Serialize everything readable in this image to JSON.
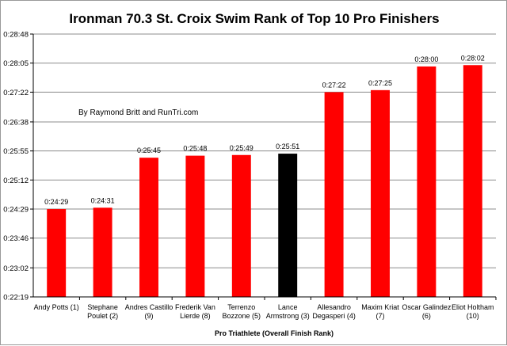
{
  "chart_data": {
    "type": "bar",
    "title": "Ironman 70.3 St. Croix Swim Rank of Top 10 Pro Finishers",
    "xlabel": "Pro Triathlete (Overall Finish Rank)",
    "ylabel": "",
    "annotation": "By Raymond Britt and RunTri.com",
    "grid": true,
    "legend": "none",
    "ylim": [
      "0:22:19",
      "0:28:48"
    ],
    "y_ticks": [
      "0:22:19",
      "0:23:02",
      "0:23:46",
      "0:24:29",
      "0:25:12",
      "0:25:55",
      "0:26:38",
      "0:27:22",
      "0:28:05",
      "0:28:48"
    ],
    "categories": [
      [
        "Andy Potts (1)"
      ],
      [
        "Stephane",
        "Poulet (2)"
      ],
      [
        "Andres Castillo",
        "(9)"
      ],
      [
        "Frederik Van",
        "Lierde (8)"
      ],
      [
        "Terrenzo",
        "Bozzone (5)"
      ],
      [
        "Lance",
        "Armstrong (3)"
      ],
      [
        "Allesandro",
        "Degasperi (4)"
      ],
      [
        "Maxim Kriat",
        "(7)"
      ],
      [
        "Oscar Galindez",
        "(6)"
      ],
      [
        "Eliot Holtham",
        "(10)"
      ]
    ],
    "values": [
      "0:24:29",
      "0:24:31",
      "0:25:45",
      "0:25:48",
      "0:25:49",
      "0:25:51",
      "0:27:22",
      "0:27:25",
      "0:28:00",
      "0:28:02"
    ],
    "colors": [
      "#ff0000",
      "#ff0000",
      "#ff0000",
      "#ff0000",
      "#ff0000",
      "#000000",
      "#ff0000",
      "#ff0000",
      "#ff0000",
      "#ff0000"
    ]
  }
}
